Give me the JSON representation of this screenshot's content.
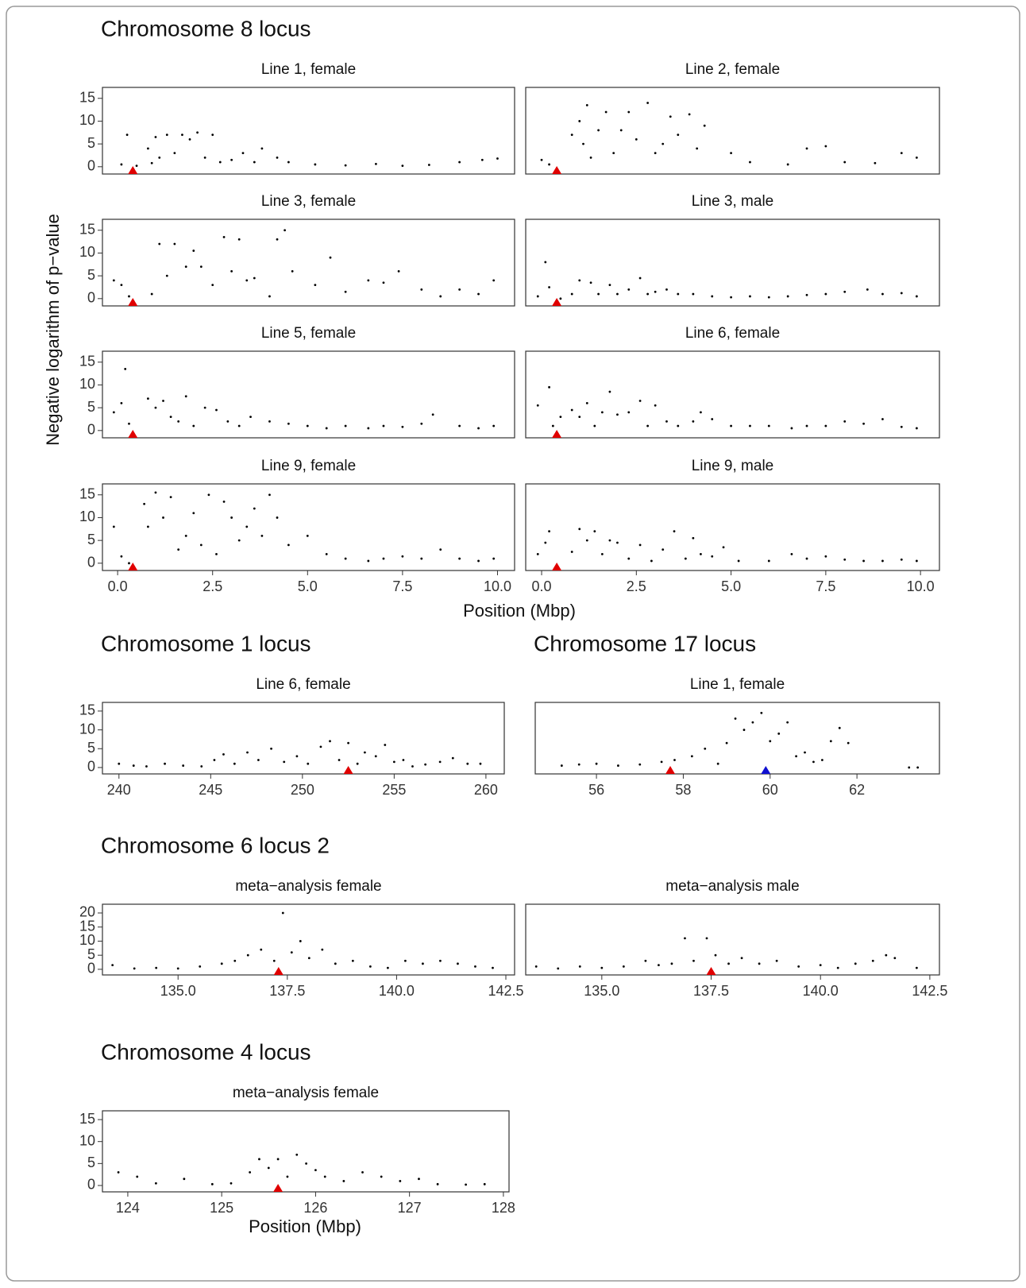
{
  "chart_data": [
    {
      "type": "scatter",
      "section": "Chromosome 8 locus",
      "title": "Line 1, female",
      "ylabel": "Negative logarithm of p−value",
      "x": [
        0.1,
        0.25,
        0.5,
        0.8,
        0.9,
        1.0,
        1.1,
        1.3,
        1.5,
        1.7,
        1.9,
        2.1,
        2.3,
        2.5,
        2.7,
        3.0,
        3.3,
        3.6,
        3.8,
        4.2,
        4.5,
        5.2,
        6.0,
        6.8,
        7.5,
        8.2,
        9.0,
        9.6,
        10.0
      ],
      "values": [
        0.5,
        7,
        0.2,
        4,
        0.8,
        6.5,
        2,
        7,
        3,
        7,
        6,
        7.5,
        2,
        7,
        1,
        1.5,
        3,
        1,
        4,
        2,
        1,
        0.5,
        0.3,
        0.6,
        0.2,
        0.4,
        1,
        1.5,
        1.8
      ],
      "color": "#000000",
      "markers": [
        {
          "x": 0.4,
          "color": "#e00000"
        }
      ],
      "xlim": [
        -0.4,
        10.45
      ],
      "ylim": [
        -1.6,
        17.4
      ],
      "yticks": [
        0,
        5,
        10,
        15
      ]
    },
    {
      "type": "scatter",
      "title": "Line 2, female",
      "x": [
        0.0,
        0.2,
        0.8,
        1.0,
        1.1,
        1.2,
        1.3,
        1.5,
        1.7,
        1.9,
        2.1,
        2.3,
        2.5,
        2.8,
        3.0,
        3.2,
        3.4,
        3.6,
        3.9,
        4.1,
        4.3,
        5.0,
        5.5,
        6.5,
        7.0,
        7.5,
        8.0,
        8.8,
        9.5,
        9.9
      ],
      "values": [
        1.5,
        0.5,
        7,
        10,
        5,
        13.5,
        2,
        8,
        12,
        3,
        8,
        12,
        6,
        14,
        3,
        5,
        11,
        7,
        11.5,
        4,
        9,
        3,
        1,
        0.5,
        4,
        4.5,
        1,
        0.8,
        3,
        2
      ],
      "color": "#000000",
      "markers": [
        {
          "x": 0.4,
          "color": "#e00000"
        }
      ],
      "xlim": [
        -0.42,
        10.5
      ],
      "ylim": [
        -1.6,
        17.4
      ]
    },
    {
      "type": "scatter",
      "title": "Line 3, female",
      "x": [
        -0.1,
        0.1,
        0.3,
        0.9,
        1.1,
        1.3,
        1.5,
        1.8,
        2.0,
        2.2,
        2.5,
        2.8,
        3.0,
        3.2,
        3.4,
        3.6,
        4.0,
        4.2,
        4.4,
        4.6,
        5.2,
        5.6,
        6.0,
        6.6,
        7.0,
        7.4,
        8.0,
        8.5,
        9.0,
        9.5,
        9.9
      ],
      "values": [
        4,
        3,
        0.5,
        1,
        12,
        5,
        12,
        7,
        10.5,
        7,
        3,
        13.5,
        6,
        13,
        4,
        4.5,
        0.5,
        13,
        15,
        6,
        3,
        9,
        1.5,
        4,
        3.5,
        6,
        2,
        0.5,
        2,
        1,
        4
      ],
      "color": "#000000",
      "markers": [
        {
          "x": 0.4,
          "color": "#e00000"
        }
      ],
      "xlim": [
        -0.4,
        10.45
      ],
      "ylim": [
        -1.6,
        17.4
      ],
      "yticks": [
        0,
        5,
        10,
        15
      ]
    },
    {
      "type": "scatter",
      "title": "Line 3, male",
      "x": [
        -0.1,
        0.1,
        0.2,
        0.5,
        0.8,
        1.0,
        1.3,
        1.5,
        1.8,
        2.0,
        2.3,
        2.6,
        2.8,
        3.0,
        3.3,
        3.6,
        4.0,
        4.5,
        5.0,
        5.5,
        6.0,
        6.5,
        7.0,
        7.5,
        8.0,
        8.6,
        9.0,
        9.5,
        9.9
      ],
      "values": [
        0.5,
        8,
        2.5,
        0,
        1,
        4,
        3.5,
        1,
        3,
        1,
        2,
        4.5,
        1,
        1.5,
        2,
        1,
        1,
        0.5,
        0.3,
        0.5,
        0.3,
        0.5,
        0.8,
        1,
        1.5,
        2,
        1,
        1.2,
        0.5
      ],
      "color": "#000000",
      "markers": [
        {
          "x": 0.4,
          "color": "#e00000"
        }
      ],
      "xlim": [
        -0.42,
        10.5
      ],
      "ylim": [
        -1.6,
        17.4
      ]
    },
    {
      "type": "scatter",
      "title": "Line 5, female",
      "x": [
        -0.1,
        0.1,
        0.2,
        0.3,
        0.8,
        1.0,
        1.2,
        1.4,
        1.6,
        1.8,
        2.0,
        2.3,
        2.6,
        2.9,
        3.2,
        3.5,
        4.0,
        4.5,
        5.0,
        5.5,
        6.0,
        6.6,
        7.0,
        7.5,
        8.0,
        8.3,
        9.0,
        9.5,
        9.9
      ],
      "values": [
        4,
        6,
        13.5,
        1.5,
        7,
        5,
        6.5,
        3,
        2,
        7.5,
        1,
        5,
        4.5,
        2,
        1,
        3,
        2,
        1.5,
        1,
        0.5,
        1,
        0.5,
        1,
        0.8,
        1.5,
        3.5,
        1,
        0.5,
        1
      ],
      "color": "#000000",
      "markers": [
        {
          "x": 0.4,
          "color": "#e00000"
        }
      ],
      "xlim": [
        -0.4,
        10.45
      ],
      "ylim": [
        -1.6,
        17.4
      ],
      "yticks": [
        0,
        5,
        10,
        15
      ]
    },
    {
      "type": "scatter",
      "title": "Line 6, female",
      "x": [
        -0.1,
        0.2,
        0.3,
        0.5,
        0.8,
        1.0,
        1.2,
        1.4,
        1.6,
        1.8,
        2.0,
        2.3,
        2.6,
        2.8,
        3.0,
        3.3,
        3.6,
        4.0,
        4.2,
        4.5,
        5.0,
        5.5,
        6.0,
        6.6,
        7.0,
        7.5,
        8.0,
        8.5,
        9.0,
        9.5,
        9.9
      ],
      "values": [
        5.5,
        9.5,
        1,
        3,
        4.5,
        3,
        6,
        1,
        4,
        8.5,
        3.5,
        4,
        6.5,
        1,
        5.5,
        2,
        1,
        2,
        4,
        2.5,
        1,
        1,
        1,
        0.5,
        1,
        1,
        2,
        1.5,
        2.5,
        0.8,
        0.5
      ],
      "color": "#000000",
      "markers": [
        {
          "x": 0.4,
          "color": "#e00000"
        }
      ],
      "xlim": [
        -0.42,
        10.5
      ],
      "ylim": [
        -1.6,
        17.4
      ]
    },
    {
      "type": "scatter",
      "title": "Line 9, female",
      "xlabel": "Position (Mbp)",
      "x": [
        -0.1,
        0.1,
        0.3,
        0.7,
        0.8,
        1.0,
        1.2,
        1.4,
        1.6,
        1.8,
        2.0,
        2.2,
        2.4,
        2.6,
        2.8,
        3.0,
        3.2,
        3.4,
        3.6,
        3.8,
        4.0,
        4.2,
        4.5,
        5.0,
        5.5,
        6.0,
        6.6,
        7.0,
        7.5,
        8.0,
        8.5,
        9.0,
        9.5,
        9.9
      ],
      "values": [
        8,
        1.5,
        0,
        13,
        8,
        15.5,
        10,
        14.5,
        3,
        6,
        11,
        4,
        15,
        2,
        13.5,
        10,
        5,
        8,
        12,
        6,
        15,
        10,
        4,
        6,
        2,
        1,
        0.5,
        1,
        1.5,
        1,
        3,
        1,
        0.5,
        1
      ],
      "color": "#000000",
      "markers": [
        {
          "x": 0.4,
          "color": "#e00000"
        }
      ],
      "xlim": [
        -0.4,
        10.45
      ],
      "ylim": [
        -1.6,
        17.4
      ],
      "yticks": [
        0,
        5,
        10,
        15
      ],
      "xticks": [
        {
          "value": 0,
          "label": "0.0"
        },
        2.5,
        {
          "value": 5,
          "label": "5.0"
        },
        7.5,
        {
          "value": 10,
          "label": "10.0"
        }
      ]
    },
    {
      "type": "scatter",
      "title": "Line 9, male",
      "x": [
        -0.1,
        0.1,
        0.2,
        0.8,
        1.0,
        1.2,
        1.4,
        1.6,
        1.8,
        2.0,
        2.3,
        2.6,
        2.9,
        3.2,
        3.5,
        3.8,
        4.0,
        4.2,
        4.5,
        4.8,
        5.2,
        6.0,
        6.6,
        7.0,
        7.5,
        8.0,
        8.5,
        9.0,
        9.5,
        9.9
      ],
      "values": [
        2,
        4.5,
        7,
        2.5,
        7.5,
        5,
        7,
        2,
        5,
        4.5,
        1,
        4,
        0.5,
        3,
        7,
        1,
        5.5,
        2,
        1.5,
        3.5,
        0.5,
        0.5,
        2,
        1,
        1.5,
        0.8,
        0.5,
        0.5,
        0.8,
        0.5
      ],
      "color": "#000000",
      "markers": [
        {
          "x": 0.4,
          "color": "#e00000"
        }
      ],
      "xlim": [
        -0.42,
        10.5
      ],
      "ylim": [
        -1.6,
        17.4
      ],
      "xticks": [
        {
          "value": 0,
          "label": "0.0"
        },
        2.5,
        {
          "value": 5,
          "label": "5.0"
        },
        7.5,
        {
          "value": 10,
          "label": "10.0"
        }
      ]
    },
    {
      "type": "scatter",
      "section": "Chromosome 1 locus",
      "title": "Line 6, female",
      "x": [
        240,
        240.8,
        241.5,
        242.5,
        243.5,
        244.5,
        245.2,
        245.7,
        246.3,
        247,
        247.6,
        248.3,
        249,
        249.7,
        250.3,
        251,
        251.5,
        252,
        252.5,
        253,
        253.4,
        254,
        254.5,
        255,
        255.5,
        256,
        256.7,
        257.5,
        258.2,
        259,
        259.7
      ],
      "values": [
        1,
        0.5,
        0.3,
        1,
        0.5,
        0.3,
        2,
        3.5,
        1,
        4,
        2,
        5,
        1.5,
        3,
        1,
        5.5,
        7,
        2,
        6.5,
        1,
        4,
        3,
        6,
        1.5,
        2,
        0.3,
        0.8,
        1.5,
        2.5,
        1,
        1
      ],
      "color": "#000000",
      "markers": [
        {
          "x": 252.5,
          "color": "#e00000"
        }
      ],
      "xlim": [
        239.1,
        261.0
      ],
      "ylim": [
        -1.7,
        17.3
      ],
      "yticks": [
        0,
        5,
        10,
        15
      ],
      "xticks": [
        240,
        245,
        250,
        255,
        260
      ]
    },
    {
      "type": "scatter",
      "section": "Chromosome 17 locus",
      "title": "Line 1, female",
      "x": [
        55.2,
        55.6,
        56.0,
        56.5,
        57.0,
        57.5,
        57.8,
        58.2,
        58.5,
        58.8,
        59.0,
        59.2,
        59.4,
        59.6,
        59.8,
        60.0,
        60.2,
        60.4,
        60.6,
        60.8,
        61.0,
        61.2,
        61.4,
        61.6,
        61.8,
        63.2,
        63.4
      ],
      "values": [
        0.5,
        0.8,
        1,
        0.5,
        0.8,
        1.5,
        2,
        3,
        5,
        1,
        6.5,
        13,
        10,
        12,
        14.5,
        7,
        9,
        12,
        3,
        4,
        1.5,
        2,
        7,
        10.5,
        6.5,
        0,
        0
      ],
      "color": "#000000",
      "markers": [
        {
          "x": 57.7,
          "color": "#e00000"
        },
        {
          "x": 59.9,
          "color": "#1010d0"
        }
      ],
      "xlim": [
        54.59,
        63.9
      ],
      "ylim": [
        -1.7,
        17.3
      ],
      "xticks": [
        56,
        58,
        60,
        62
      ]
    },
    {
      "type": "scatter",
      "section": "Chromosome 6 locus 2",
      "title": "meta−analysis female",
      "x": [
        133.5,
        134.0,
        134.5,
        135.0,
        135.5,
        136.0,
        136.3,
        136.6,
        136.9,
        137.2,
        137.4,
        137.6,
        137.8,
        138.0,
        138.3,
        138.6,
        139.0,
        139.4,
        139.8,
        140.2,
        140.6,
        141.0,
        141.4,
        141.8,
        142.2
      ],
      "values": [
        1.5,
        0.3,
        0.5,
        0.3,
        1,
        2,
        3,
        5,
        7,
        3,
        20,
        6,
        10,
        4,
        7,
        2,
        3,
        1,
        0.5,
        3,
        2,
        3,
        2,
        1,
        0.5
      ],
      "color": "#000000",
      "markers": [
        {
          "x": 137.3,
          "color": "#e00000"
        }
      ],
      "xlim": [
        133.27,
        142.7
      ],
      "ylim": [
        -2.0,
        23.1
      ],
      "yticks": [
        0,
        5,
        10,
        15,
        20
      ],
      "xticks": [
        {
          "value": 135,
          "label": "135.0"
        },
        137.5,
        {
          "value": 140,
          "label": "140.0"
        },
        142.5
      ]
    },
    {
      "type": "scatter",
      "title": "meta−analysis male",
      "x": [
        133.5,
        134.0,
        134.5,
        135.0,
        135.5,
        136.0,
        136.3,
        136.6,
        136.9,
        137.1,
        137.4,
        137.6,
        137.9,
        138.2,
        138.6,
        139.0,
        139.5,
        140.0,
        140.4,
        140.8,
        141.2,
        141.5,
        141.7,
        142.2
      ],
      "values": [
        1,
        0.3,
        1,
        0.5,
        1,
        3,
        1.5,
        2,
        11,
        3,
        11,
        5,
        2,
        4,
        2,
        3,
        1,
        1.5,
        0.5,
        2,
        3,
        5,
        4,
        0.5
      ],
      "color": "#000000",
      "markers": [
        {
          "x": 137.5,
          "color": "#e00000"
        }
      ],
      "xlim": [
        133.26,
        142.72
      ],
      "ylim": [
        -2.0,
        23.1
      ],
      "xticks": [
        {
          "value": 135,
          "label": "135.0"
        },
        137.5,
        {
          "value": 140,
          "label": "140.0"
        },
        142.5
      ]
    },
    {
      "type": "scatter",
      "section": "Chromosome 4 locus",
      "title": "meta−analysis female",
      "xlabel": "Position (Mbp)",
      "x": [
        123.9,
        124.1,
        124.3,
        124.6,
        124.9,
        125.1,
        125.3,
        125.4,
        125.5,
        125.6,
        125.7,
        125.8,
        125.9,
        126.0,
        126.1,
        126.3,
        126.5,
        126.7,
        126.9,
        127.1,
        127.3,
        127.6,
        127.8
      ],
      "values": [
        3,
        2,
        0.5,
        1.5,
        0.3,
        0.5,
        3,
        6,
        4,
        6,
        2,
        7,
        5,
        3.5,
        2,
        1,
        3,
        2,
        1,
        1.5,
        0.3,
        0.2,
        0.3
      ],
      "color": "#000000",
      "markers": [
        {
          "x": 125.6,
          "color": "#e00000"
        }
      ],
      "xlim": [
        123.73,
        128.06
      ],
      "ylim": [
        -1.45,
        17.0
      ],
      "yticks": [
        0,
        5,
        10,
        15
      ],
      "xticks": [
        124,
        125,
        126,
        127,
        128
      ]
    }
  ]
}
